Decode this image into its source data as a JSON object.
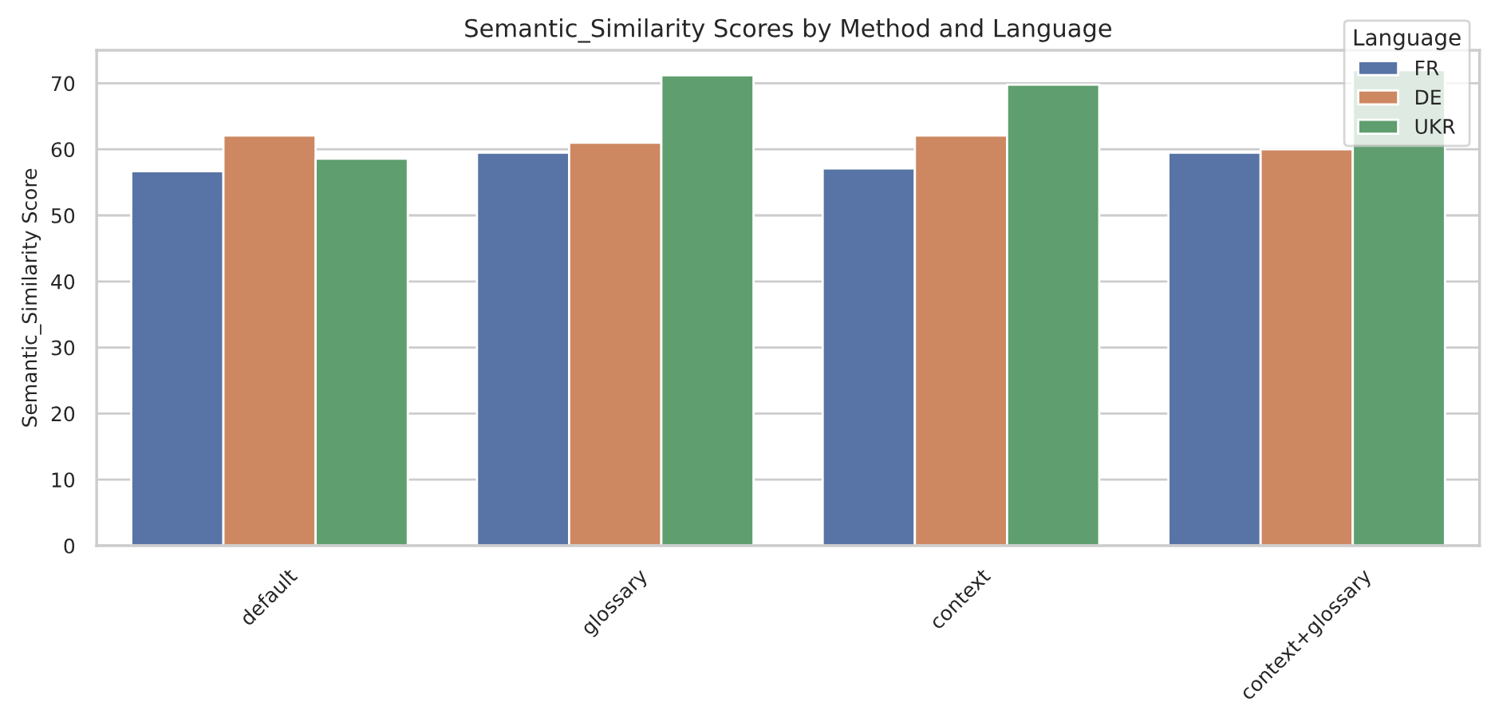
{
  "chart_data": {
    "type": "bar",
    "title": "Semantic_Similarity Scores by Method and Language",
    "ylabel": "Semantic_Similarity Score",
    "legend_title": "Language",
    "categories": [
      "default",
      "glossary",
      "context",
      "context+glossary"
    ],
    "series": [
      {
        "name": "FR",
        "color": "#5874a6",
        "values": [
          56.7,
          59.5,
          57.1,
          59.5
        ]
      },
      {
        "name": "DE",
        "color": "#cd8862",
        "values": [
          62.1,
          61.0,
          62.1,
          60.0
        ]
      },
      {
        "name": "UKR",
        "color": "#5f9e6e",
        "values": [
          58.6,
          71.2,
          69.8,
          72.0
        ]
      }
    ],
    "ylim": [
      0,
      75
    ],
    "yticks": [
      0,
      10,
      20,
      30,
      40,
      50,
      60,
      70
    ],
    "grid": "y",
    "legend": "top right"
  }
}
